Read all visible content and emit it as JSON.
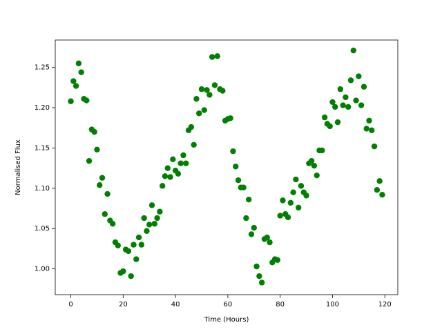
{
  "chart_data": {
    "type": "scatter",
    "xlabel": "Time (Hours)",
    "ylabel": "Normalised Flux",
    "color": "#008000",
    "x": [
      0,
      1,
      2,
      3,
      4,
      5,
      6,
      7,
      8,
      9,
      10,
      11,
      12,
      13,
      14,
      15,
      16,
      17,
      18,
      19,
      20,
      21,
      22,
      23,
      24,
      25,
      26,
      27,
      28,
      29,
      30,
      31,
      32,
      33,
      34,
      35,
      36,
      37,
      38,
      39,
      40,
      41,
      42,
      43,
      44,
      45,
      46,
      47,
      48,
      49,
      50,
      51,
      52,
      53,
      54,
      55,
      56,
      57,
      58,
      59,
      60,
      61,
      62,
      63,
      64,
      65,
      66,
      67,
      68,
      69,
      70,
      71,
      72,
      73,
      74,
      75,
      76,
      77,
      78,
      79,
      80,
      81,
      82,
      83,
      84,
      85,
      86,
      87,
      88,
      89,
      90,
      91,
      92,
      93,
      94,
      95,
      96,
      97,
      98,
      99,
      100,
      101,
      102,
      103,
      104,
      105,
      106,
      107,
      108,
      109,
      110,
      111,
      112,
      113,
      114,
      115,
      116,
      117,
      118,
      119
    ],
    "y": [
      1.208,
      1.233,
      1.227,
      1.255,
      1.244,
      1.211,
      1.209,
      1.134,
      1.173,
      1.17,
      1.148,
      1.104,
      1.113,
      1.068,
      1.093,
      1.06,
      1.056,
      1.033,
      1.029,
      0.995,
      0.997,
      1.024,
      1.022,
      0.991,
      1.03,
      1.012,
      1.039,
      1.03,
      1.063,
      1.047,
      1.055,
      1.079,
      1.056,
      1.063,
      1.071,
      1.103,
      1.115,
      1.125,
      1.114,
      1.136,
      1.122,
      1.118,
      1.131,
      1.141,
      1.131,
      1.172,
      1.176,
      1.154,
      1.211,
      1.193,
      1.223,
      1.197,
      1.222,
      1.216,
      1.263,
      1.228,
      1.264,
      1.223,
      1.221,
      1.184,
      1.186,
      1.187,
      1.146,
      1.127,
      1.11,
      1.101,
      1.101,
      1.063,
      1.086,
      1.043,
      1.051,
      1.003,
      0.991,
      0.983,
      1.037,
      1.039,
      1.033,
      1.008,
      1.012,
      1.011,
      1.066,
      1.085,
      1.068,
      1.064,
      1.082,
      1.095,
      1.111,
      1.076,
      1.103,
      1.095,
      1.091,
      1.131,
      1.134,
      1.128,
      1.116,
      1.147,
      1.147,
      1.188,
      1.18,
      1.177,
      1.207,
      1.201,
      1.182,
      1.223,
      1.203,
      1.213,
      1.201,
      1.234,
      1.271,
      1.209,
      1.239,
      1.203,
      1.226,
      1.174,
      1.184,
      1.172,
      1.152,
      1.098,
      1.109,
      1.092
    ],
    "xlim": [
      -5.95,
      124.95
    ],
    "ylim": [
      0.968,
      1.284
    ],
    "xticks": [
      0,
      20,
      40,
      60,
      80,
      100,
      120
    ],
    "yticks": [
      {
        "value": 1.0,
        "label": "1.00"
      },
      1.05,
      {
        "value": 1.1,
        "label": "1.10"
      },
      1.15,
      {
        "value": 1.2,
        "label": "1.20"
      },
      1.25
    ]
  }
}
